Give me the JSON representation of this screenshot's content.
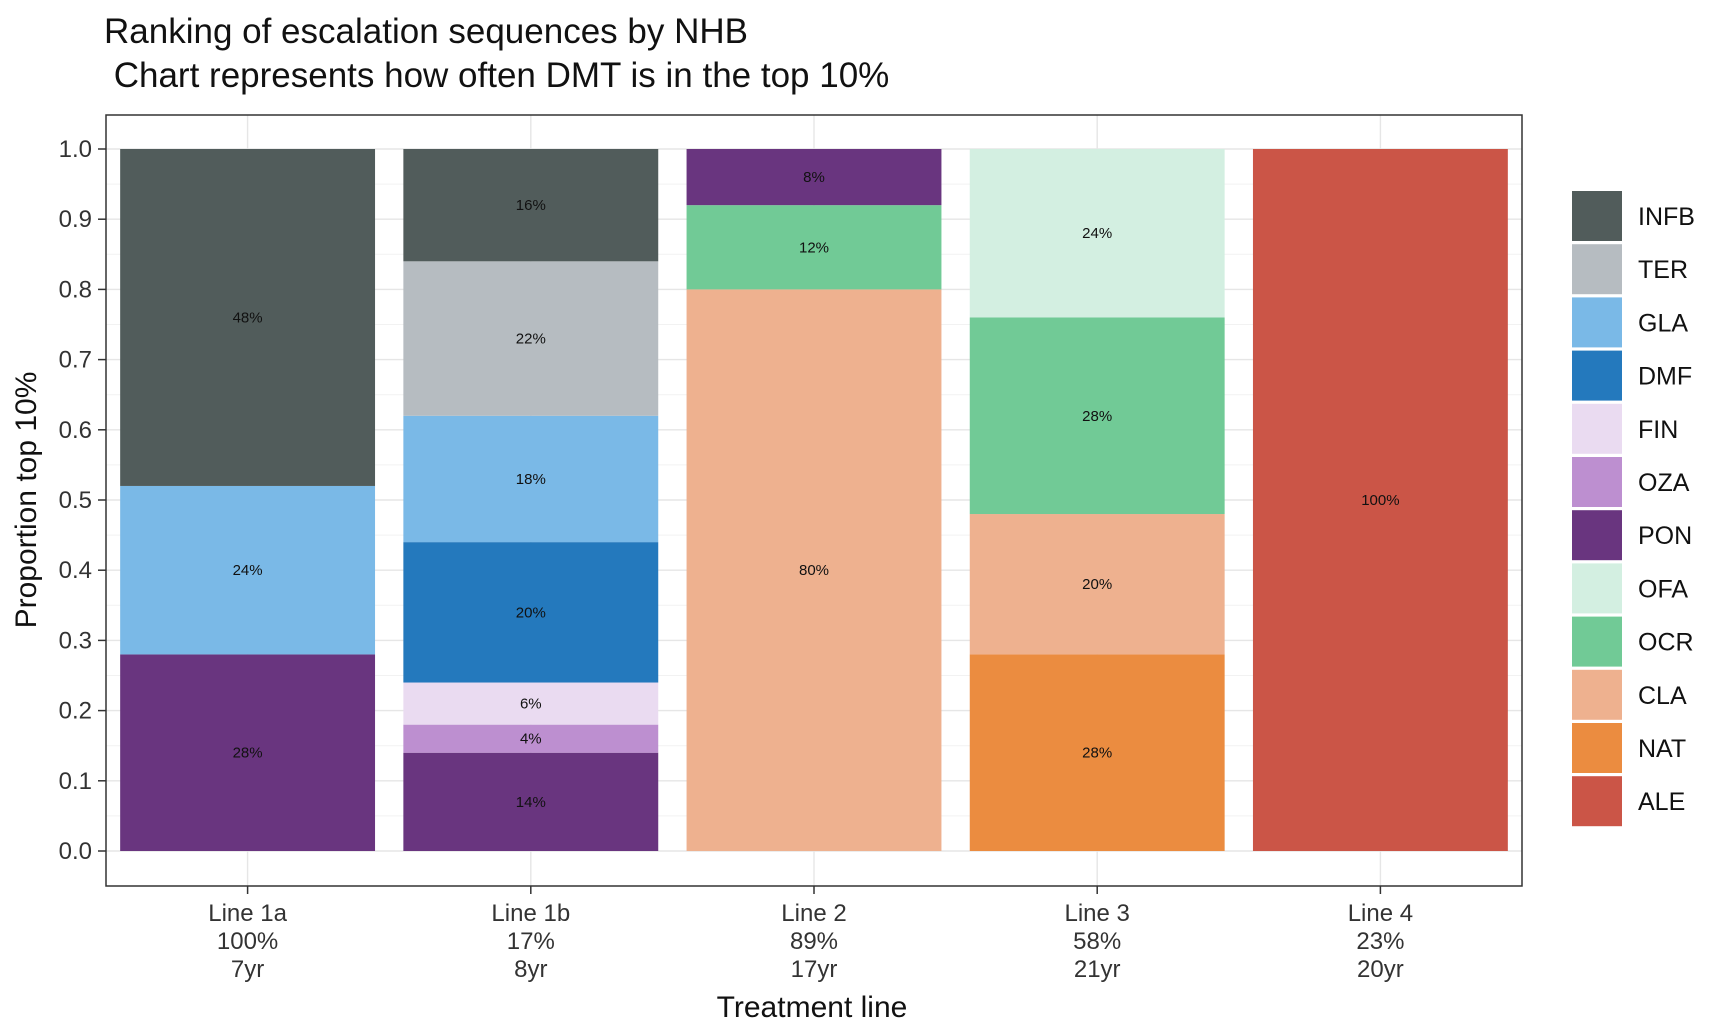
{
  "chart_data": {
    "type": "bar",
    "stacked": true,
    "title": "Ranking of escalation sequences by NHB",
    "subtitle": " Chart represents how often DMT is in the top 10%",
    "xlabel": "Treatment line",
    "ylabel": "Proportion top 10%",
    "ylim": [
      0,
      1
    ],
    "yticks": [
      "0.0",
      "0.1",
      "0.2",
      "0.3",
      "0.4",
      "0.5",
      "0.6",
      "0.7",
      "0.8",
      "0.9",
      "1.0"
    ],
    "grid": true,
    "legend_position": "right",
    "categories": [
      {
        "line1": "Line 1a",
        "line2": "100%",
        "line3": "7yr"
      },
      {
        "line1": "Line 1b",
        "line2": "17%",
        "line3": "8yr"
      },
      {
        "line1": "Line 2",
        "line2": "89%",
        "line3": "17yr"
      },
      {
        "line1": "Line 3",
        "line2": "58%",
        "line3": "21yr"
      },
      {
        "line1": "Line 4",
        "line2": "23%",
        "line3": "20yr"
      }
    ],
    "series": [
      {
        "name": "INFB",
        "color": "#515c5b",
        "values": [
          0.48,
          0.16,
          0,
          0,
          0
        ],
        "labels": [
          "48%",
          "16%",
          "",
          "",
          ""
        ]
      },
      {
        "name": "TER",
        "color": "#b6bcc1",
        "values": [
          0,
          0.22,
          0,
          0,
          0
        ],
        "labels": [
          "",
          "22%",
          "",
          "",
          ""
        ]
      },
      {
        "name": "GLA",
        "color": "#7ab9e7",
        "values": [
          0.24,
          0.18,
          0,
          0,
          0
        ],
        "labels": [
          "24%",
          "18%",
          "",
          "",
          ""
        ]
      },
      {
        "name": "DMF",
        "color": "#2479bd",
        "values": [
          0,
          0.2,
          0,
          0,
          0
        ],
        "labels": [
          "",
          "20%",
          "",
          "",
          ""
        ]
      },
      {
        "name": "FIN",
        "color": "#eadbf1",
        "values": [
          0,
          0.06,
          0,
          0,
          0
        ],
        "labels": [
          "",
          "6%",
          "",
          "",
          ""
        ]
      },
      {
        "name": "OZA",
        "color": "#bd8fd0",
        "values": [
          0,
          0.04,
          0,
          0,
          0
        ],
        "labels": [
          "",
          "4%",
          "",
          "",
          ""
        ]
      },
      {
        "name": "PON",
        "color": "#69357f",
        "values": [
          0.28,
          0.14,
          0.08,
          0,
          0
        ],
        "labels": [
          "28%",
          "14%",
          "8%",
          "",
          ""
        ]
      },
      {
        "name": "OFA",
        "color": "#d3efe1",
        "values": [
          0,
          0,
          0,
          0.24,
          0
        ],
        "labels": [
          "",
          "",
          "",
          "24%",
          ""
        ]
      },
      {
        "name": "OCR",
        "color": "#71ca96",
        "values": [
          0,
          0,
          0.12,
          0.28,
          0
        ],
        "labels": [
          "",
          "",
          "12%",
          "28%",
          ""
        ]
      },
      {
        "name": "CLA",
        "color": "#eeb18f",
        "values": [
          0,
          0,
          0.8,
          0.2,
          0
        ],
        "labels": [
          "",
          "",
          "80%",
          "20%",
          ""
        ]
      },
      {
        "name": "NAT",
        "color": "#eb8c40",
        "values": [
          0,
          0,
          0,
          0.28,
          0
        ],
        "labels": [
          "",
          "",
          "",
          "28%",
          ""
        ]
      },
      {
        "name": "ALE",
        "color": "#cb5547",
        "values": [
          0,
          0,
          0,
          0,
          1.0
        ],
        "labels": [
          "",
          "",
          "",
          "",
          "100%"
        ]
      }
    ],
    "stack_order_top_to_bottom": [
      [
        "INFB",
        "GLA",
        "PON"
      ],
      [
        "INFB",
        "TER",
        "GLA",
        "DMF",
        "FIN",
        "OZA",
        "PON"
      ],
      [
        "PON",
        "OCR",
        "CLA"
      ],
      [
        "OFA",
        "OCR",
        "CLA",
        "NAT"
      ],
      [
        "ALE"
      ]
    ]
  }
}
